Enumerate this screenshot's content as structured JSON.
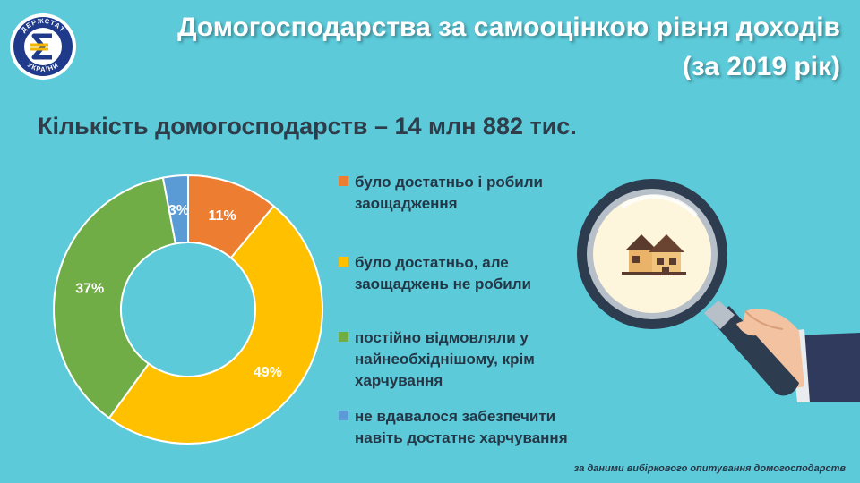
{
  "header": {
    "title_line1": "Домогосподарства за самооцінкою рівня доходів",
    "title_line2": "(за 2019 рік)",
    "logo_text": "ДЕРЖСТАТ УКРАЇНИ",
    "logo_icon": "euro-like-sigma-emblem"
  },
  "subtitle": "Кількість домогосподарств – 14 млн 882 тис.",
  "chart_data": {
    "type": "pie",
    "donut": true,
    "unit": "%",
    "categories": [
      "було достатньо і робили заощадження",
      "було достатньо, але заощаджень не робили",
      "постійно відмовляли у найнеобхіднішому, крім харчування",
      "не вдавалося забезпечити навіть достатнє харчування"
    ],
    "values": [
      11,
      49,
      37,
      3
    ],
    "labels": [
      "11%",
      "49%",
      "37%",
      "3%"
    ],
    "colors": [
      "#ed7d31",
      "#ffc000",
      "#70ad47",
      "#5b9bd5"
    ],
    "legend_position": "right"
  },
  "legend": [
    {
      "lines": [
        "було достатньо і робили",
        "заощадження"
      ],
      "color": "#ed7d31"
    },
    {
      "lines": [
        "було достатньо, але",
        "заощаджень не робили"
      ],
      "color": "#ffc000"
    },
    {
      "lines": [
        "постійно відмовляли у",
        "найнеобхіднішому, крім",
        "харчування"
      ],
      "color": "#70ad47"
    },
    {
      "lines": [
        "не вдавалося забезпечити",
        "навіть достатнє харчування"
      ],
      "color": "#5b9bd5"
    }
  ],
  "illustration": "magnifying-glass-houses-icon",
  "footer": {
    "source": "за даними вибіркового опитування домогосподарств"
  }
}
